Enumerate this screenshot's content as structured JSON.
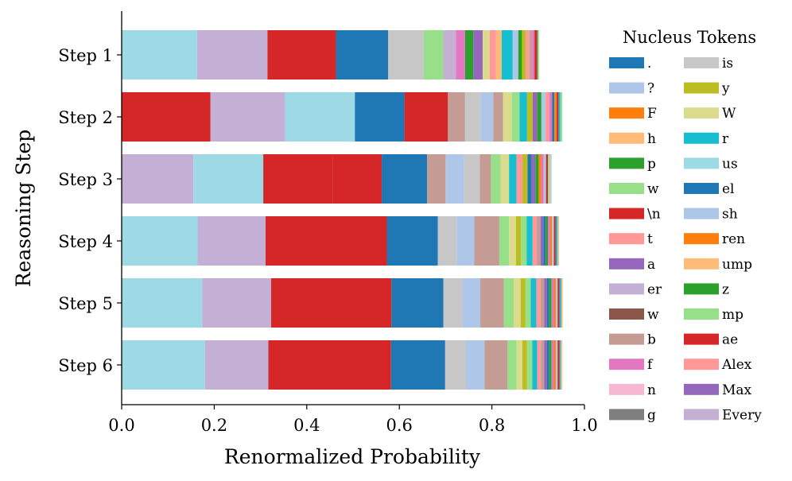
{
  "chart_data": {
    "type": "bar",
    "orientation": "horizontal",
    "stacked": true,
    "xlabel": "Renormalized Probability",
    "ylabel": "Reasoning Step",
    "xlim": [
      0.0,
      1.0
    ],
    "x_ticks": [
      "0.0",
      "0.2",
      "0.4",
      "0.6",
      "0.8",
      "1.0"
    ],
    "categories": [
      "Step 1",
      "Step 2",
      "Step 3",
      "Step 4",
      "Step 5",
      "Step 6"
    ],
    "grid": false,
    "legend_position": "right",
    "legend": {
      "title": "Nucleus Tokens",
      "entries": [
        {
          "label": ".",
          "color": "#1f77b4"
        },
        {
          "label": "?",
          "color": "#aec7e8"
        },
        {
          "label": "F",
          "color": "#ff7f0e"
        },
        {
          "label": "h",
          "color": "#ffbb78"
        },
        {
          "label": "p",
          "color": "#2ca02c"
        },
        {
          "label": "w",
          "color": "#98df8a"
        },
        {
          "label": "\\n",
          "color": "#d62728"
        },
        {
          "label": "t",
          "color": "#ff9896"
        },
        {
          "label": "a",
          "color": "#9467bd"
        },
        {
          "label": "er",
          "color": "#c5b0d5"
        },
        {
          "label": "w",
          "color": "#8c564b"
        },
        {
          "label": "b",
          "color": "#c49c94"
        },
        {
          "label": "f",
          "color": "#e377c2"
        },
        {
          "label": "n",
          "color": "#f7b6d2"
        },
        {
          "label": "g",
          "color": "#7f7f7f"
        },
        {
          "label": "is",
          "color": "#c7c7c7"
        },
        {
          "label": "y",
          "color": "#bcbd22"
        },
        {
          "label": "W",
          "color": "#dbdb8d"
        },
        {
          "label": "r",
          "color": "#17becf"
        },
        {
          "label": "us",
          "color": "#9edae5"
        },
        {
          "label": "el",
          "color": "#1f77b4"
        },
        {
          "label": "sh",
          "color": "#aec7e8"
        },
        {
          "label": "ren",
          "color": "#ff7f0e"
        },
        {
          "label": "ump",
          "color": "#ffbb78"
        },
        {
          "label": "z",
          "color": "#2ca02c"
        },
        {
          "label": "mp",
          "color": "#98df8a"
        },
        {
          "label": "ae",
          "color": "#d62728"
        },
        {
          "label": "Alex",
          "color": "#ff9896"
        },
        {
          "label": "Max",
          "color": "#9467bd"
        },
        {
          "label": "Every",
          "color": "#c5b0d5"
        }
      ]
    },
    "series": [
      {
        "values": [
          [
            "#9edae5",
            0.163
          ],
          [
            "#c5b0d5",
            0.152
          ],
          [
            "#d62728",
            0.148
          ],
          [
            "#1f77b4",
            0.113
          ],
          [
            "#c7c7c7",
            0.077
          ],
          [
            "#98df8a",
            0.042
          ],
          [
            "#c5b0d5",
            0.027
          ],
          [
            "#e377c2",
            0.02
          ],
          [
            "#2ca02c",
            0.018
          ],
          [
            "#9467bd",
            0.02
          ],
          [
            "#dbdb8d",
            0.015
          ],
          [
            "#ff9896",
            0.014
          ],
          [
            "#ffbb78",
            0.012
          ],
          [
            "#17becf",
            0.024
          ],
          [
            "#aec7e8",
            0.012
          ],
          [
            "#2ca02c",
            0.008
          ],
          [
            "#bcbd22",
            0.008
          ],
          [
            "#ff9896",
            0.008
          ],
          [
            "#c49c94",
            0.006
          ],
          [
            "#e377c2",
            0.005
          ],
          [
            "#d62728",
            0.004
          ],
          [
            "#8c564b",
            0.003
          ],
          [
            "#98df8a",
            0.003
          ]
        ]
      },
      {
        "values": [
          [
            "#d62728",
            0.192
          ],
          [
            "#c5b0d5",
            0.161
          ],
          [
            "#9edae5",
            0.151
          ],
          [
            "#1f77b4",
            0.107
          ],
          [
            "#d62728",
            0.094
          ],
          [
            "#c49c94",
            0.037
          ],
          [
            "#c7c7c7",
            0.034
          ],
          [
            "#aec7e8",
            0.027
          ],
          [
            "#c49c94",
            0.021
          ],
          [
            "#dbdb8d",
            0.019
          ],
          [
            "#98df8a",
            0.017
          ],
          [
            "#17becf",
            0.016
          ],
          [
            "#bcbd22",
            0.012
          ],
          [
            "#9467bd",
            0.01
          ],
          [
            "#2ca02c",
            0.009
          ],
          [
            "#aec7e8",
            0.009
          ],
          [
            "#ff9896",
            0.008
          ],
          [
            "#e377c2",
            0.006
          ],
          [
            "#1f77b4",
            0.005
          ],
          [
            "#ff7f0e",
            0.005
          ],
          [
            "#d62728",
            0.004
          ],
          [
            "#17becf",
            0.004
          ],
          [
            "#98df8a",
            0.004
          ]
        ]
      },
      {
        "values": [
          [
            "#c5b0d5",
            0.155
          ],
          [
            "#9edae5",
            0.151
          ],
          [
            "#d62728",
            0.15
          ],
          [
            "#d62728",
            0.106
          ],
          [
            "#1f77b4",
            0.098
          ],
          [
            "#c49c94",
            0.04
          ],
          [
            "#aec7e8",
            0.04
          ],
          [
            "#c7c7c7",
            0.034
          ],
          [
            "#c49c94",
            0.024
          ],
          [
            "#98df8a",
            0.021
          ],
          [
            "#dbdb8d",
            0.018
          ],
          [
            "#17becf",
            0.016
          ],
          [
            "#ff9896",
            0.013
          ],
          [
            "#bcbd22",
            0.011
          ],
          [
            "#1f77b4",
            0.009
          ],
          [
            "#9467bd",
            0.008
          ],
          [
            "#2ca02c",
            0.007
          ],
          [
            "#ff7f0e",
            0.006
          ],
          [
            "#e377c2",
            0.005
          ],
          [
            "#aec7e8",
            0.005
          ],
          [
            "#d62728",
            0.004
          ],
          [
            "#98df8a",
            0.004
          ],
          [
            "#c7c7c7",
            0.004
          ]
        ]
      },
      {
        "values": [
          [
            "#9edae5",
            0.164
          ],
          [
            "#c5b0d5",
            0.147
          ],
          [
            "#d62728",
            0.262
          ],
          [
            "#1f77b4",
            0.11
          ],
          [
            "#c7c7c7",
            0.041
          ],
          [
            "#aec7e8",
            0.038
          ],
          [
            "#c49c94",
            0.054
          ],
          [
            "#98df8a",
            0.021
          ],
          [
            "#dbdb8d",
            0.015
          ],
          [
            "#bcbd22",
            0.011
          ],
          [
            "#98df8a",
            0.012
          ],
          [
            "#17becf",
            0.013
          ],
          [
            "#ff9896",
            0.009
          ],
          [
            "#c49c94",
            0.008
          ],
          [
            "#9467bd",
            0.006
          ],
          [
            "#1f77b4",
            0.005
          ],
          [
            "#2ca02c",
            0.005
          ],
          [
            "#e377c2",
            0.005
          ],
          [
            "#ff7f0e",
            0.004
          ],
          [
            "#aec7e8",
            0.004
          ],
          [
            "#d62728",
            0.004
          ],
          [
            "#17becf",
            0.004
          ],
          [
            "#ffbb78",
            0.003
          ]
        ]
      },
      {
        "values": [
          [
            "#9edae5",
            0.174
          ],
          [
            "#c5b0d5",
            0.149
          ],
          [
            "#d62728",
            0.26
          ],
          [
            "#1f77b4",
            0.112
          ],
          [
            "#c7c7c7",
            0.041
          ],
          [
            "#aec7e8",
            0.039
          ],
          [
            "#c49c94",
            0.051
          ],
          [
            "#98df8a",
            0.021
          ],
          [
            "#dbdb8d",
            0.015
          ],
          [
            "#bcbd22",
            0.01
          ],
          [
            "#98df8a",
            0.012
          ],
          [
            "#17becf",
            0.012
          ],
          [
            "#ff9896",
            0.009
          ],
          [
            "#c49c94",
            0.008
          ],
          [
            "#9467bd",
            0.006
          ],
          [
            "#1f77b4",
            0.005
          ],
          [
            "#2ca02c",
            0.005
          ],
          [
            "#e377c2",
            0.005
          ],
          [
            "#ff7f0e",
            0.004
          ],
          [
            "#aec7e8",
            0.004
          ],
          [
            "#d62728",
            0.004
          ],
          [
            "#17becf",
            0.004
          ],
          [
            "#ffbb78",
            0.003
          ]
        ]
      },
      {
        "values": [
          [
            "#9edae5",
            0.18
          ],
          [
            "#c5b0d5",
            0.137
          ],
          [
            "#d62728",
            0.265
          ],
          [
            "#1f77b4",
            0.117
          ],
          [
            "#c7c7c7",
            0.045
          ],
          [
            "#aec7e8",
            0.04
          ],
          [
            "#c49c94",
            0.05
          ],
          [
            "#98df8a",
            0.019
          ],
          [
            "#dbdb8d",
            0.013
          ],
          [
            "#bcbd22",
            0.01
          ],
          [
            "#98df8a",
            0.011
          ],
          [
            "#17becf",
            0.011
          ],
          [
            "#ff9896",
            0.008
          ],
          [
            "#c49c94",
            0.007
          ],
          [
            "#9467bd",
            0.006
          ],
          [
            "#1f77b4",
            0.005
          ],
          [
            "#2ca02c",
            0.005
          ],
          [
            "#e377c2",
            0.005
          ],
          [
            "#ff7f0e",
            0.004
          ],
          [
            "#aec7e8",
            0.004
          ],
          [
            "#d62728",
            0.004
          ],
          [
            "#17becf",
            0.003
          ],
          [
            "#ffbb78",
            0.003
          ]
        ]
      }
    ]
  }
}
